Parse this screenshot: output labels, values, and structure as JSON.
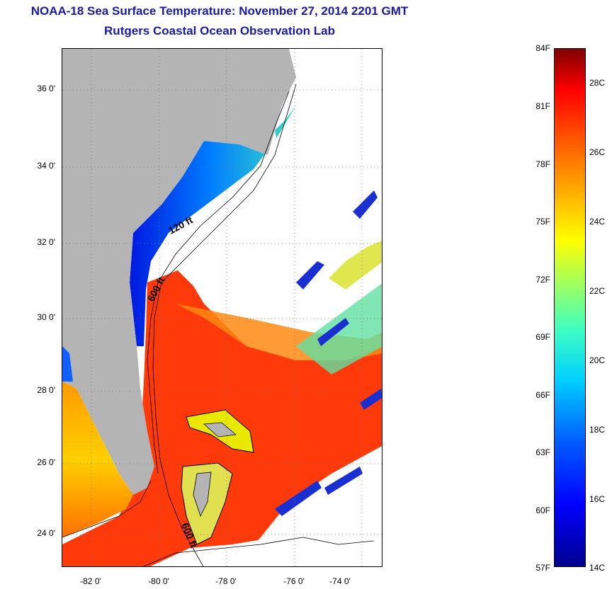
{
  "header": {
    "title": "NOAA-18 Sea Surface Temperature:  November 27, 2014 2201 GMT",
    "subtitle": "Rutgers Coastal Ocean Observation Lab"
  },
  "map": {
    "lat_labels": [
      "36 0'",
      "34 0'",
      "32 0'",
      "30 0'",
      "28 0'",
      "26 0'",
      "24 0'"
    ],
    "lon_labels": [
      "-82 0'",
      "-80 0'",
      "-78 0'",
      "-76 0'",
      "-74 0'"
    ],
    "contour_labels": [
      "120 ft",
      "600 ft",
      "600 ft"
    ],
    "colors": {
      "land": "#b4b4b4",
      "gulf_stream": "#ff2a00",
      "cold_shelf": "#0033ff",
      "cloud": "#ffffff"
    }
  },
  "colorbar": {
    "fahrenheit_labels": [
      "84F",
      "81F",
      "78F",
      "75F",
      "72F",
      "69F",
      "66F",
      "63F",
      "60F",
      "57F"
    ],
    "celsius_labels": [
      "28C",
      "26C",
      "24C",
      "22C",
      "20C",
      "18C",
      "16C",
      "14C"
    ],
    "range_f": [
      57,
      84
    ],
    "range_c": [
      14,
      29
    ]
  }
}
